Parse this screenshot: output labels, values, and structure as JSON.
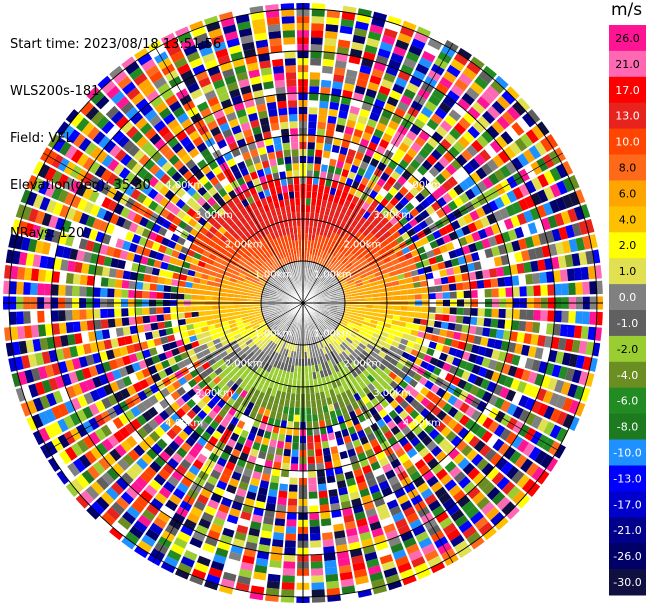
{
  "header": {
    "start_time": "Start time: 2023/08/18 13:51:56",
    "instrument": "WLS200s-181",
    "field": "Field: VEL",
    "elevation": "Elevation(deg): 35.30",
    "nrays": "NRays: 120"
  },
  "chart_data": {
    "type": "heatmap",
    "projection": "polar PPI",
    "field": "VEL",
    "units": "m/s",
    "nrays": 120,
    "elevation_deg": 35.3,
    "range_ring_labels": [
      "1.00km",
      "2.00km",
      "3.00km",
      "4.00km"
    ],
    "colorbar": {
      "title": "m/s",
      "ticks": [
        "26.0",
        "21.0",
        "17.0",
        "13.0",
        "10.0",
        "8.0",
        "6.0",
        "4.0",
        "2.0",
        "1.0",
        "0.0",
        "-1.0",
        "-2.0",
        "-4.0",
        "-6.0",
        "-8.0",
        "-10.0",
        "-13.0",
        "-17.0",
        "-21.0",
        "-26.0",
        "-30.0"
      ],
      "colors": [
        "#ff1493",
        "#ff69b4",
        "#ff0000",
        "#e8231e",
        "#ff4500",
        "#ff6a1a",
        "#ffa500",
        "#ffc000",
        "#ffff00",
        "#e0e050",
        "#808080",
        "#606060",
        "#9acd32",
        "#6b8e23",
        "#228b22",
        "#1e7a1e",
        "#1e90ff",
        "#0000ff",
        "#0000cd",
        "#00008b",
        "#000066",
        "#101040"
      ]
    }
  }
}
